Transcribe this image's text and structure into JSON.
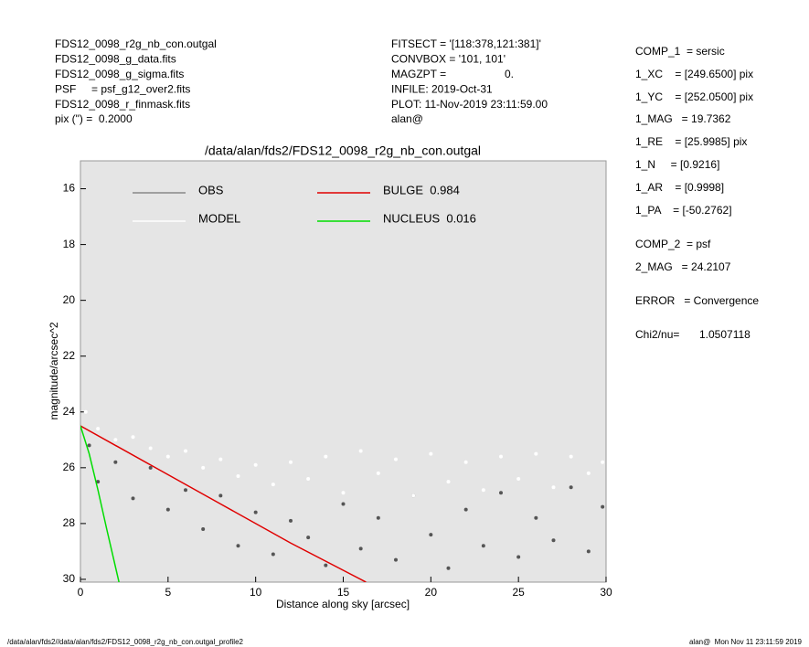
{
  "chart_data": {
    "type": "scatter",
    "title": "/data/alan/fds2/FDS12_0098_r2g_nb_con.outgal",
    "x_label": "Distance along sky [arcsec]",
    "y_label": "magnitude/arcsec^2",
    "xlim": [
      0,
      30
    ],
    "xticks": [
      0,
      5,
      10,
      15,
      20,
      25,
      30
    ],
    "ylim": [
      30.1,
      15
    ],
    "yticks": [
      16,
      18,
      20,
      22,
      24,
      26,
      28,
      30
    ],
    "background": "#e5e5e5",
    "series": [
      {
        "name": "OBS",
        "color": "#555555",
        "mode": "markers",
        "x": [
          0.5,
          1,
          2,
          3,
          4,
          5,
          6,
          7,
          8,
          9,
          10,
          11,
          12,
          13,
          14,
          15,
          16,
          17,
          18,
          19,
          20,
          21,
          22,
          23,
          24,
          25,
          26,
          27,
          28,
          29,
          29.8
        ],
        "values": [
          25.2,
          26.5,
          25.8,
          27.1,
          26.0,
          27.5,
          26.8,
          28.2,
          27.0,
          28.8,
          27.6,
          29.1,
          27.9,
          28.5,
          29.5,
          27.3,
          28.9,
          27.8,
          29.3,
          27.0,
          28.4,
          29.6,
          27.5,
          28.8,
          26.9,
          29.2,
          27.8,
          28.6,
          26.7,
          29.0,
          27.4
        ]
      },
      {
        "name": "MODEL",
        "color": "#ffffff",
        "mode": "markers",
        "x": [
          0.3,
          1,
          2,
          3,
          4,
          5,
          6,
          7,
          8,
          9,
          10,
          11,
          12,
          13,
          14,
          15,
          16,
          17,
          18,
          19,
          20,
          21,
          22,
          23,
          24,
          25,
          26,
          27,
          28,
          29,
          29.8
        ],
        "values": [
          24.0,
          24.6,
          25.0,
          24.9,
          25.3,
          25.6,
          25.4,
          26.0,
          25.7,
          26.3,
          25.9,
          26.6,
          25.8,
          26.4,
          25.6,
          26.9,
          25.4,
          26.2,
          25.7,
          27.0,
          25.5,
          26.5,
          25.8,
          26.8,
          25.6,
          26.4,
          25.5,
          26.7,
          25.6,
          26.2,
          25.8
        ]
      },
      {
        "name": "BULGE  0.984",
        "color": "#e00000",
        "mode": "line",
        "x": [
          0,
          4,
          8,
          12,
          16.3
        ],
        "values": [
          24.5,
          25.9,
          27.3,
          28.7,
          30.1
        ]
      },
      {
        "name": "NUCLEUS  0.016",
        "color": "#00dd00",
        "mode": "line",
        "x": [
          0,
          0.5,
          1,
          1.5,
          2.2
        ],
        "values": [
          24.5,
          25.5,
          26.8,
          28.2,
          30.1
        ]
      }
    ]
  },
  "header_left": [
    "FDS12_0098_r2g_nb_con.outgal",
    "FDS12_0098_g_data.fits",
    "FDS12_0098_g_sigma.fits",
    "PSF     = psf_g12_over2.fits",
    "FDS12_0098_r_finmask.fits",
    "pix (\") =  0.2000"
  ],
  "header_middle": [
    "FITSECT = '[118:378,121:381]'",
    "CONVBOX = '101, 101'",
    "MAGZPT =",
    "INFILE: 2019-Oct-31",
    "PLOT: 11-Nov-2019 23:11:59.00",
    "alan@"
  ],
  "magzpt_value": "0.",
  "params": [
    "COMP_1  = sersic",
    "1_XC    = [249.6500] pix",
    "1_YC    = [252.0500] pix",
    "1_MAG   = 19.7362",
    "1_RE    = [25.9985] pix",
    "1_N     = [0.9216]",
    "1_AR    = [0.9998]",
    "1_PA    = [-50.2762]",
    "COMP_2  = psf",
    "2_MAG   = 24.2107",
    "ERROR   = Convergence",
    "Chi2/nu="
  ],
  "chi2_value": "1.0507118",
  "footer_left": "/data/alan/fds2//data/alan/fds2/FDS12_0098_r2g_nb_con.outgal_profile2",
  "footer_right": "alan@  Mon Nov 11 23:11:59 2019"
}
